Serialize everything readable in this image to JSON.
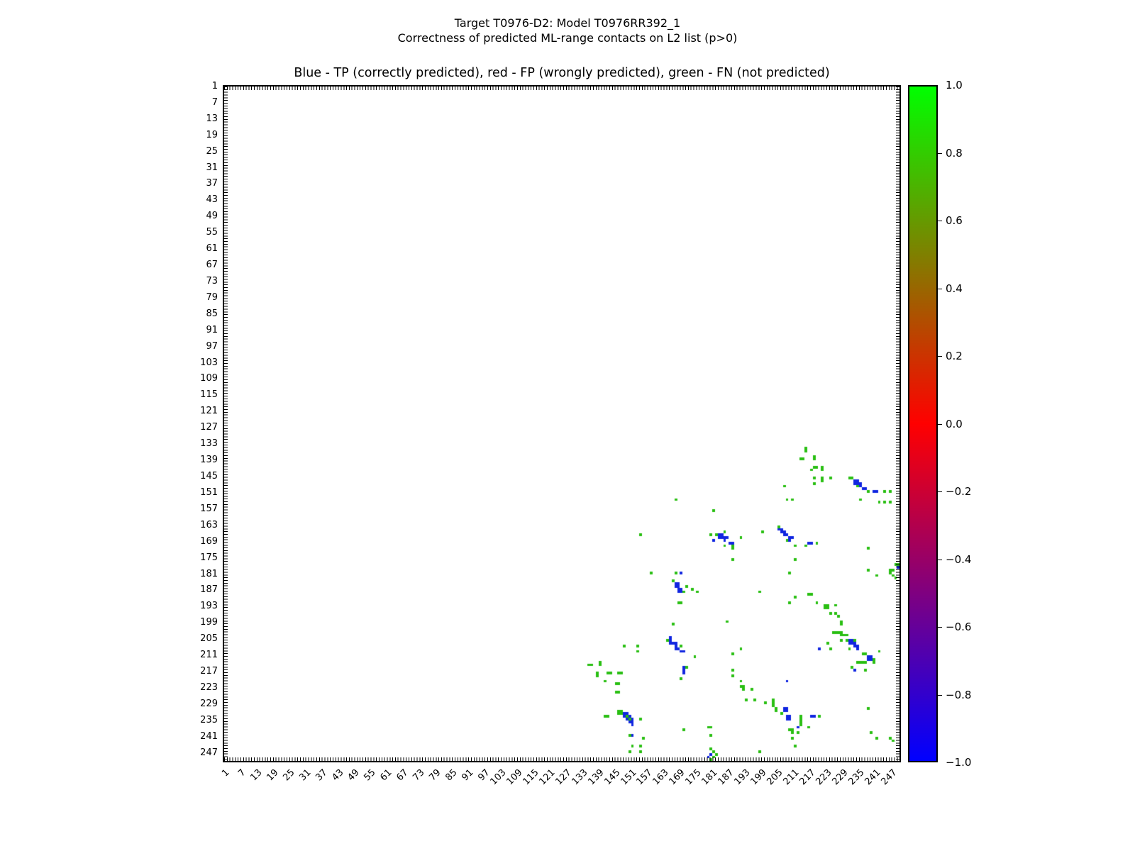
{
  "suptitle": {
    "line1": "Target T0976-D2: Model T0976RR392_1",
    "line2": "Correctness of predicted ML-range contacts on L2 list (p>0)"
  },
  "chart_data": {
    "type": "heatmap",
    "title": "Blue - TP (correctly predicted), red - FP (wrongly predicted), green - FN (not predicted)",
    "axes": {
      "x_range": [
        1,
        250
      ],
      "y_range": [
        1,
        250
      ],
      "y_inverted": true,
      "minor_tick_every": 1,
      "major_tick_step": 6,
      "x_tick_labels": [
        "1",
        "7",
        "13",
        "19",
        "25",
        "31",
        "37",
        "43",
        "49",
        "55",
        "61",
        "67",
        "73",
        "79",
        "85",
        "91",
        "97",
        "103",
        "109",
        "115",
        "121",
        "127",
        "133",
        "139",
        "145",
        "151",
        "157",
        "163",
        "169",
        "175",
        "181",
        "187",
        "193",
        "199",
        "205",
        "211",
        "217",
        "223",
        "229",
        "235",
        "241",
        "247"
      ],
      "y_tick_labels": [
        "1",
        "7",
        "13",
        "19",
        "25",
        "31",
        "37",
        "43",
        "49",
        "55",
        "61",
        "67",
        "73",
        "79",
        "85",
        "91",
        "97",
        "103",
        "109",
        "115",
        "121",
        "127",
        "133",
        "139",
        "145",
        "151",
        "157",
        "163",
        "169",
        "175",
        "181",
        "187",
        "193",
        "199",
        "205",
        "211",
        "217",
        "223",
        "229",
        "235",
        "241",
        "247"
      ]
    },
    "colorbar": {
      "min": -1.0,
      "max": 1.0,
      "tick_labels": [
        "1.0",
        "0.8",
        "0.6",
        "0.4",
        "0.2",
        "0.0",
        "−0.2",
        "−0.4",
        "−0.6",
        "−0.8",
        "−1.0"
      ],
      "colors_top_to_bottom": [
        "#00ff00",
        "#ff0000",
        "#0000ff"
      ]
    },
    "series": [
      {
        "name": "TP (correctly predicted)",
        "color": "#1126e0",
        "points": [
          [
            233,
            146
          ],
          [
            234,
            146
          ],
          [
            233,
            147
          ],
          [
            234,
            147
          ],
          [
            235,
            147
          ],
          [
            235,
            148
          ],
          [
            236,
            149
          ],
          [
            237,
            149
          ],
          [
            240,
            150
          ],
          [
            241,
            150
          ],
          [
            205,
            164
          ],
          [
            206,
            164
          ],
          [
            206,
            165
          ],
          [
            207,
            165
          ],
          [
            207,
            166
          ],
          [
            208,
            166
          ],
          [
            209,
            167
          ],
          [
            210,
            167
          ],
          [
            209,
            168
          ],
          [
            216,
            169
          ],
          [
            217,
            169
          ],
          [
            183,
            166
          ],
          [
            184,
            166
          ],
          [
            183,
            167
          ],
          [
            184,
            167
          ],
          [
            185,
            167
          ],
          [
            186,
            167
          ],
          [
            185,
            168
          ],
          [
            181,
            168
          ],
          [
            187,
            169
          ],
          [
            188,
            169
          ],
          [
            167,
            184
          ],
          [
            168,
            184
          ],
          [
            167,
            185
          ],
          [
            168,
            185
          ],
          [
            168,
            186
          ],
          [
            169,
            186
          ],
          [
            168,
            187
          ],
          [
            169,
            187
          ],
          [
            169,
            180
          ],
          [
            165,
            204
          ],
          [
            165,
            205
          ],
          [
            165,
            206
          ],
          [
            166,
            206
          ],
          [
            167,
            206
          ],
          [
            167,
            207
          ],
          [
            167,
            208
          ],
          [
            168,
            208
          ],
          [
            169,
            209
          ],
          [
            170,
            209
          ],
          [
            170,
            215
          ],
          [
            170,
            216
          ],
          [
            170,
            217
          ],
          [
            148,
            232
          ],
          [
            149,
            232
          ],
          [
            148,
            233
          ],
          [
            150,
            233
          ],
          [
            149,
            234
          ],
          [
            151,
            234
          ],
          [
            150,
            235
          ],
          [
            151,
            235
          ],
          [
            151,
            236
          ],
          [
            151,
            240
          ],
          [
            207,
            230
          ],
          [
            208,
            230
          ],
          [
            207,
            231
          ],
          [
            208,
            231
          ],
          [
            208,
            233
          ],
          [
            209,
            233
          ],
          [
            208,
            234
          ],
          [
            209,
            234
          ],
          [
            217,
            233
          ],
          [
            218,
            233
          ],
          [
            212,
            237
          ],
          [
            231,
            205
          ],
          [
            232,
            205
          ],
          [
            231,
            206
          ],
          [
            232,
            206
          ],
          [
            233,
            206
          ],
          [
            233,
            207
          ],
          [
            234,
            207
          ],
          [
            234,
            208
          ],
          [
            238,
            211
          ],
          [
            239,
            211
          ],
          [
            238,
            212
          ],
          [
            239,
            212
          ],
          [
            233,
            216
          ],
          [
            220,
            208
          ],
          [
            208,
            220
          ],
          [
            249,
            178
          ],
          [
            179,
            248
          ],
          [
            180,
            247
          ]
        ]
      },
      {
        "name": "FP (wrongly predicted)",
        "color": "#ff0000",
        "points": []
      },
      {
        "name": "FN (not predicted)",
        "color": "#2abf13",
        "points": [
          [
            215,
            134
          ],
          [
            215,
            135
          ],
          [
            213,
            138
          ],
          [
            214,
            138
          ],
          [
            218,
            137
          ],
          [
            218,
            138
          ],
          [
            217,
            142
          ],
          [
            218,
            141
          ],
          [
            219,
            141
          ],
          [
            221,
            141
          ],
          [
            221,
            142
          ],
          [
            218,
            145
          ],
          [
            221,
            145
          ],
          [
            224,
            145
          ],
          [
            221,
            146
          ],
          [
            218,
            147
          ],
          [
            207,
            148
          ],
          [
            208,
            153
          ],
          [
            210,
            153
          ],
          [
            231,
            145
          ],
          [
            232,
            145
          ],
          [
            234,
            148
          ],
          [
            238,
            150
          ],
          [
            244,
            150
          ],
          [
            246,
            150
          ],
          [
            235,
            153
          ],
          [
            242,
            154
          ],
          [
            244,
            154
          ],
          [
            246,
            154
          ],
          [
            167,
            153
          ],
          [
            181,
            157
          ],
          [
            154,
            166
          ],
          [
            158,
            180
          ],
          [
            167,
            180
          ],
          [
            180,
            166
          ],
          [
            182,
            166
          ],
          [
            185,
            165
          ],
          [
            185,
            170
          ],
          [
            188,
            170
          ],
          [
            188,
            171
          ],
          [
            188,
            175
          ],
          [
            191,
            167
          ],
          [
            199,
            165
          ],
          [
            205,
            163
          ],
          [
            208,
            168
          ],
          [
            211,
            170
          ],
          [
            215,
            170
          ],
          [
            219,
            169
          ],
          [
            211,
            175
          ],
          [
            209,
            180
          ],
          [
            238,
            171
          ],
          [
            166,
            183
          ],
          [
            171,
            185
          ],
          [
            173,
            186
          ],
          [
            170,
            187
          ],
          [
            175,
            187
          ],
          [
            168,
            191
          ],
          [
            169,
            191
          ],
          [
            166,
            199
          ],
          [
            164,
            205
          ],
          [
            169,
            207
          ],
          [
            174,
            211
          ],
          [
            171,
            215
          ],
          [
            169,
            219
          ],
          [
            186,
            198
          ],
          [
            198,
            187
          ],
          [
            250,
            176
          ],
          [
            248,
            177
          ],
          [
            249,
            177
          ],
          [
            246,
            179
          ],
          [
            247,
            179
          ],
          [
            246,
            180
          ],
          [
            247,
            181
          ],
          [
            248,
            182
          ],
          [
            238,
            179
          ],
          [
            241,
            181
          ],
          [
            228,
            198
          ],
          [
            228,
            199
          ],
          [
            225,
            202
          ],
          [
            226,
            202
          ],
          [
            227,
            202
          ],
          [
            228,
            202
          ],
          [
            228,
            203
          ],
          [
            229,
            203
          ],
          [
            230,
            203
          ],
          [
            228,
            205
          ],
          [
            230,
            205
          ],
          [
            233,
            205
          ],
          [
            231,
            208
          ],
          [
            242,
            209
          ],
          [
            236,
            210
          ],
          [
            237,
            210
          ],
          [
            240,
            212
          ],
          [
            234,
            213
          ],
          [
            235,
            213
          ],
          [
            236,
            213
          ],
          [
            237,
            213
          ],
          [
            240,
            213
          ],
          [
            232,
            215
          ],
          [
            237,
            216
          ],
          [
            223,
            206
          ],
          [
            224,
            208
          ],
          [
            216,
            188
          ],
          [
            217,
            188
          ],
          [
            211,
            189
          ],
          [
            209,
            191
          ],
          [
            219,
            191
          ],
          [
            222,
            192
          ],
          [
            223,
            192
          ],
          [
            222,
            193
          ],
          [
            223,
            193
          ],
          [
            226,
            192
          ],
          [
            224,
            195
          ],
          [
            226,
            195
          ],
          [
            227,
            196
          ],
          [
            148,
            207
          ],
          [
            153,
            207
          ],
          [
            153,
            209
          ],
          [
            135,
            214
          ],
          [
            136,
            214
          ],
          [
            139,
            213
          ],
          [
            139,
            214
          ],
          [
            138,
            217
          ],
          [
            138,
            218
          ],
          [
            142,
            217
          ],
          [
            143,
            217
          ],
          [
            146,
            217
          ],
          [
            147,
            217
          ],
          [
            141,
            220
          ],
          [
            145,
            221
          ],
          [
            146,
            221
          ],
          [
            145,
            224
          ],
          [
            146,
            224
          ],
          [
            188,
            210
          ],
          [
            188,
            216
          ],
          [
            188,
            218
          ],
          [
            191,
            208
          ],
          [
            191,
            220
          ],
          [
            141,
            233
          ],
          [
            142,
            233
          ],
          [
            146,
            231
          ],
          [
            147,
            231
          ],
          [
            146,
            232
          ],
          [
            147,
            232
          ],
          [
            149,
            233
          ],
          [
            150,
            234
          ],
          [
            154,
            234
          ],
          [
            150,
            240
          ],
          [
            155,
            241
          ],
          [
            151,
            244
          ],
          [
            154,
            244
          ],
          [
            150,
            246
          ],
          [
            154,
            246
          ],
          [
            191,
            222
          ],
          [
            192,
            222
          ],
          [
            192,
            223
          ],
          [
            195,
            223
          ],
          [
            193,
            227
          ],
          [
            196,
            227
          ],
          [
            200,
            228
          ],
          [
            203,
            227
          ],
          [
            203,
            228
          ],
          [
            203,
            229
          ],
          [
            204,
            230
          ],
          [
            204,
            231
          ],
          [
            206,
            232
          ],
          [
            213,
            233
          ],
          [
            213,
            234
          ],
          [
            213,
            235
          ],
          [
            213,
            236
          ],
          [
            209,
            238
          ],
          [
            210,
            238
          ],
          [
            210,
            239
          ],
          [
            212,
            239
          ],
          [
            216,
            237
          ],
          [
            220,
            233
          ],
          [
            210,
            241
          ],
          [
            211,
            244
          ],
          [
            170,
            238
          ],
          [
            179,
            237
          ],
          [
            180,
            237
          ],
          [
            180,
            240
          ],
          [
            180,
            245
          ],
          [
            198,
            246
          ],
          [
            176,
            250
          ],
          [
            177,
            250
          ],
          [
            178,
            250
          ],
          [
            179,
            250
          ],
          [
            180,
            249
          ],
          [
            180,
            250
          ],
          [
            181,
            248
          ],
          [
            181,
            246
          ],
          [
            182,
            247
          ],
          [
            239,
            239
          ],
          [
            241,
            241
          ],
          [
            246,
            241
          ],
          [
            247,
            242
          ],
          [
            238,
            230
          ]
        ]
      }
    ]
  }
}
